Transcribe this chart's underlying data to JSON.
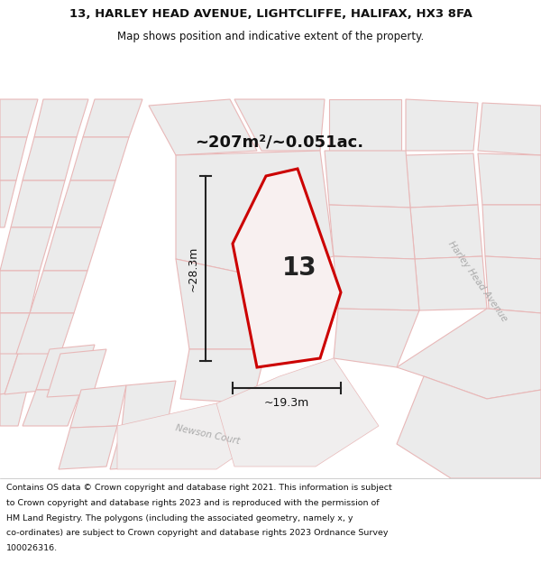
{
  "title_line1": "13, HARLEY HEAD AVENUE, LIGHTCLIFFE, HALIFAX, HX3 8FA",
  "title_line2": "Map shows position and indicative extent of the property.",
  "area_label": "~207m²/~0.051ac.",
  "width_label": "~19.3m",
  "height_label": "~28.3m",
  "property_number": "13",
  "footer_lines": [
    "Contains OS data © Crown copyright and database right 2021. This information is subject",
    "to Crown copyright and database rights 2023 and is reproduced with the permission of",
    "HM Land Registry. The polygons (including the associated geometry, namely x, y",
    "co-ordinates) are subject to Crown copyright and database rights 2023 Ordnance Survey",
    "100026316."
  ],
  "map_bg": "#ffffff",
  "block_fill": "#ebebeb",
  "block_edge": "#e8b8b8",
  "road_edge": "#e8b8b8",
  "plot_color": "#cc0000",
  "street_label_color": "#aaaaaa",
  "title_bg": "#ffffff",
  "footer_bg": "#ffffff",
  "dim_line_color": "#222222"
}
